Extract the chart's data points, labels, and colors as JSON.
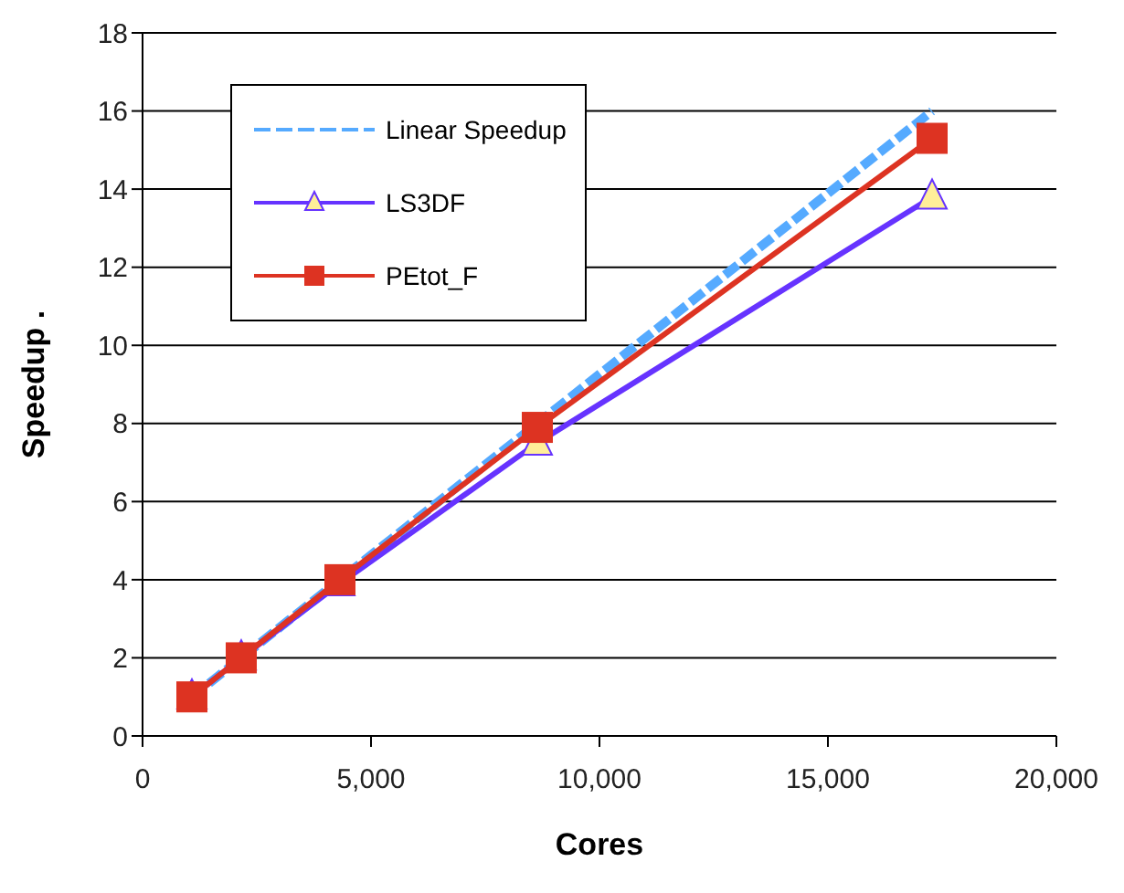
{
  "chart_data": {
    "type": "line",
    "xlabel": "Cores",
    "ylabel": "Speedup  .",
    "x": [
      1080,
      2160,
      4320,
      8640,
      17280
    ],
    "series": [
      {
        "name": "Linear Speedup",
        "color": "#55aaff",
        "values": [
          1,
          2,
          4,
          8,
          16
        ],
        "marker": "none",
        "line_style": "dashed"
      },
      {
        "name": "LS3DF",
        "color": "#6633ff",
        "values": [
          1,
          2,
          3.9,
          7.5,
          13.8
        ],
        "marker": "triangle",
        "line_style": "solid"
      },
      {
        "name": "PEtot_F",
        "color": "#dd3322",
        "values": [
          1,
          2,
          4,
          7.9,
          15.3
        ],
        "marker": "square",
        "line_style": "solid"
      }
    ],
    "xlim": [
      0,
      20000
    ],
    "xticks": [
      {
        "value": 0,
        "label": "0"
      },
      {
        "value": 5000,
        "label": "5,000"
      },
      {
        "value": 10000,
        "label": "10,000"
      },
      {
        "value": 15000,
        "label": "15,000"
      },
      {
        "value": 20000,
        "label": "20,000"
      }
    ],
    "ylim": [
      0,
      18
    ],
    "yticks": [
      0,
      2,
      4,
      6,
      8,
      10,
      12,
      14,
      16,
      18
    ],
    "grid": "y",
    "legend": "top left"
  }
}
